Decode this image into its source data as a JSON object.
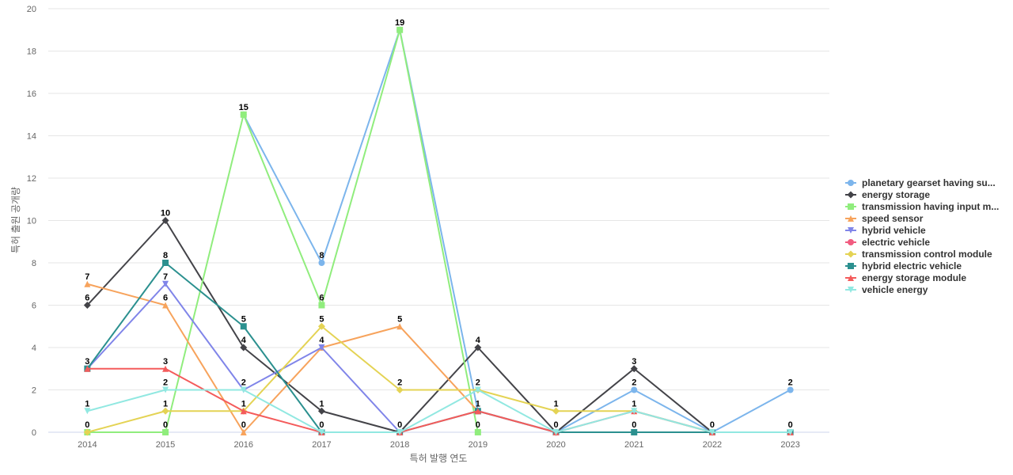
{
  "chart_data": {
    "type": "line",
    "title": "",
    "xlabel": "특허 발행 연도",
    "ylabel": "특허 출원 공개량",
    "x": [
      "2014",
      "2015",
      "2016",
      "2017",
      "2018",
      "2019",
      "2020",
      "2021",
      "2022",
      "2023"
    ],
    "ylim": [
      0,
      20
    ],
    "yticks": [
      0,
      2,
      4,
      6,
      8,
      10,
      12,
      14,
      16,
      18,
      20
    ],
    "grid": true,
    "legend_position": "right",
    "series": [
      {
        "name": "planetary gearset having su...",
        "color": "#7cb5ec",
        "marker": "circle",
        "values": [
          null,
          null,
          15,
          8,
          19,
          1,
          0,
          2,
          0,
          2
        ]
      },
      {
        "name": "energy storage",
        "color": "#434348",
        "marker": "diamond",
        "values": [
          6,
          10,
          4,
          1,
          0,
          4,
          0,
          3,
          0,
          null
        ]
      },
      {
        "name": "transmission having input m...",
        "color": "#90ed7d",
        "marker": "square",
        "values": [
          0,
          0,
          15,
          6,
          19,
          0,
          null,
          null,
          null,
          null
        ]
      },
      {
        "name": "speed sensor",
        "color": "#f7a35c",
        "marker": "triangle",
        "values": [
          7,
          6,
          0,
          4,
          5,
          1,
          null,
          null,
          null,
          null
        ]
      },
      {
        "name": "hybrid vehicle",
        "color": "#8085e9",
        "marker": "triangle-down",
        "values": [
          3,
          7,
          2,
          4,
          0,
          null,
          null,
          null,
          null,
          null
        ]
      },
      {
        "name": "electric vehicle",
        "color": "#f15c80",
        "marker": "circle",
        "values": [
          null,
          null,
          null,
          null,
          null,
          null,
          null,
          null,
          0,
          0
        ]
      },
      {
        "name": "transmission control module",
        "color": "#e4d354",
        "marker": "diamond",
        "values": [
          0,
          1,
          1,
          5,
          2,
          2,
          1,
          1,
          0,
          null
        ]
      },
      {
        "name": "hybrid electric vehicle",
        "color": "#2b908f",
        "marker": "square",
        "values": [
          3,
          8,
          5,
          0,
          0,
          1,
          0,
          0,
          0,
          0
        ]
      },
      {
        "name": "energy storage module",
        "color": "#f45b5b",
        "marker": "triangle",
        "values": [
          3,
          3,
          1,
          0,
          0,
          1,
          0,
          1,
          0,
          0
        ]
      },
      {
        "name": "vehicle energy",
        "color": "#91e8e1",
        "marker": "triangle-down",
        "values": [
          1,
          2,
          2,
          0,
          0,
          2,
          0,
          1,
          0,
          0
        ]
      }
    ],
    "data_labels": [
      {
        "x": "2014",
        "value": 7
      },
      {
        "x": "2014",
        "value": 6
      },
      {
        "x": "2014",
        "value": 3
      },
      {
        "x": "2014",
        "value": 1
      },
      {
        "x": "2014",
        "value": 0
      },
      {
        "x": "2015",
        "value": 10
      },
      {
        "x": "2015",
        "value": 8
      },
      {
        "x": "2015",
        "value": 7
      },
      {
        "x": "2015",
        "value": 6
      },
      {
        "x": "2015",
        "value": 3
      },
      {
        "x": "2015",
        "value": 2
      },
      {
        "x": "2015",
        "value": 1
      },
      {
        "x": "2015",
        "value": 0
      },
      {
        "x": "2016",
        "value": 15
      },
      {
        "x": "2016",
        "value": 5
      },
      {
        "x": "2016",
        "value": 4
      },
      {
        "x": "2016",
        "value": 2
      },
      {
        "x": "2016",
        "value": 1
      },
      {
        "x": "2016",
        "value": 0
      },
      {
        "x": "2017",
        "value": 8
      },
      {
        "x": "2017",
        "value": 6
      },
      {
        "x": "2017",
        "value": 5
      },
      {
        "x": "2017",
        "value": 4
      },
      {
        "x": "2017",
        "value": 1
      },
      {
        "x": "2017",
        "value": 0
      },
      {
        "x": "2018",
        "value": 19
      },
      {
        "x": "2018",
        "value": 5
      },
      {
        "x": "2018",
        "value": 2
      },
      {
        "x": "2018",
        "value": 0
      },
      {
        "x": "2019",
        "value": 4
      },
      {
        "x": "2019",
        "value": 2
      },
      {
        "x": "2019",
        "value": 1
      },
      {
        "x": "2019",
        "value": 0
      },
      {
        "x": "2020",
        "value": 1
      },
      {
        "x": "2020",
        "value": 0
      },
      {
        "x": "2021",
        "value": 3
      },
      {
        "x": "2021",
        "value": 2
      },
      {
        "x": "2021",
        "value": 1
      },
      {
        "x": "2021",
        "value": 0
      },
      {
        "x": "2022",
        "value": 0
      },
      {
        "x": "2023",
        "value": 2
      },
      {
        "x": "2023",
        "value": 0
      }
    ]
  }
}
